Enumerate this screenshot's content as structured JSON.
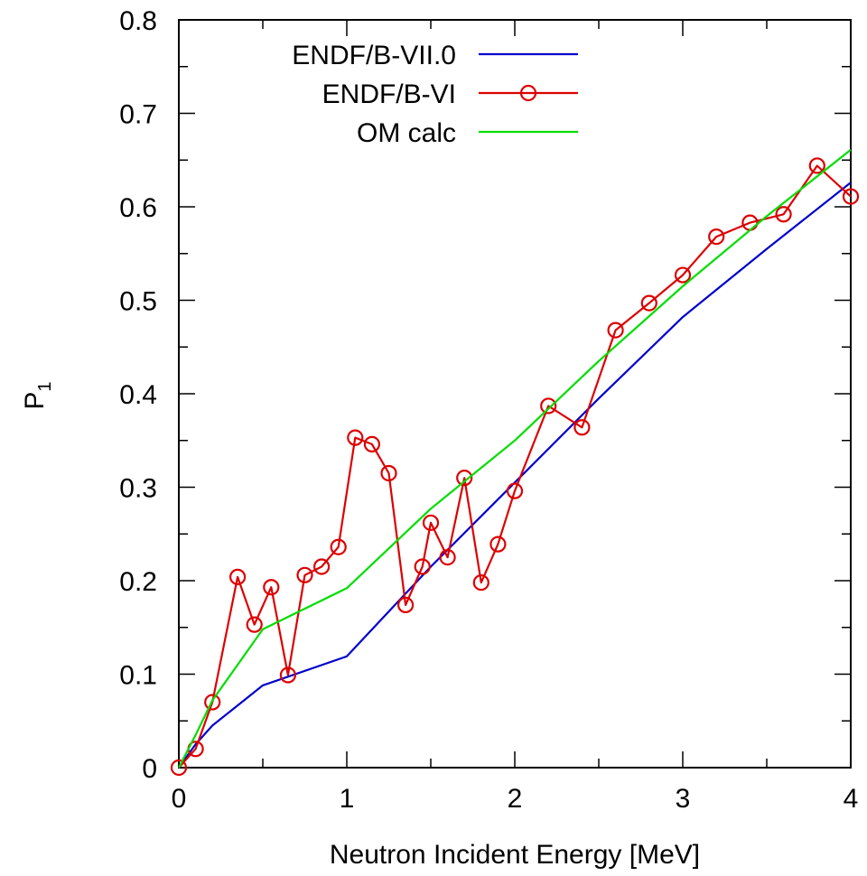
{
  "chart_data": {
    "type": "line",
    "title": "",
    "xlabel": "Neutron Incident Energy [MeV]",
    "ylabel": "P",
    "ylabel_subscript": "1",
    "xlim": [
      0,
      4
    ],
    "ylim": [
      0,
      0.8
    ],
    "x_ticks": [
      0,
      1,
      2,
      3,
      4
    ],
    "x_tick_labels": [
      "0",
      "1",
      "2",
      "3",
      "4"
    ],
    "y_ticks": [
      0,
      0.1,
      0.2,
      0.3,
      0.4,
      0.5,
      0.6,
      0.7,
      0.8
    ],
    "y_tick_labels": [
      "0",
      "0.1",
      "0.2",
      "0.3",
      "0.4",
      "0.5",
      "0.6",
      "0.7",
      "0.8"
    ],
    "grid": false,
    "legend_position": "top-left",
    "series": [
      {
        "name": "ENDF/B-VII.0",
        "color": "#0000cc",
        "marker": "none",
        "x": [
          0,
          0.1,
          0.2,
          0.5,
          1.0,
          1.5,
          2.0,
          2.5,
          3.0,
          3.5,
          4.0
        ],
        "y": [
          0,
          0.025,
          0.045,
          0.088,
          0.119,
          0.215,
          0.305,
          0.395,
          0.482,
          0.555,
          0.626
        ]
      },
      {
        "name": "ENDF/B-VI",
        "color": "#dd0000",
        "marker": "circle",
        "x": [
          0,
          0.1,
          0.2,
          0.35,
          0.45,
          0.55,
          0.65,
          0.75,
          0.85,
          0.95,
          1.05,
          1.15,
          1.25,
          1.35,
          1.45,
          1.5,
          1.6,
          1.7,
          1.8,
          1.9,
          2.0,
          2.2,
          2.4,
          2.6,
          2.8,
          3.0,
          3.2,
          3.4,
          3.6,
          3.8,
          4.0
        ],
        "y": [
          0,
          0.02,
          0.07,
          0.204,
          0.153,
          0.193,
          0.099,
          0.206,
          0.215,
          0.236,
          0.353,
          0.346,
          0.315,
          0.174,
          0.215,
          0.262,
          0.225,
          0.31,
          0.198,
          0.239,
          0.296,
          0.387,
          0.364,
          0.468,
          0.497,
          0.527,
          0.568,
          0.583,
          0.592,
          0.644,
          0.611
        ]
      },
      {
        "name": "OM calc",
        "color": "#00dd00",
        "marker": "none",
        "x": [
          0,
          0.1,
          0.2,
          0.5,
          1.0,
          1.5,
          2.0,
          2.5,
          3.0,
          3.5,
          4.0
        ],
        "y": [
          0,
          0.035,
          0.072,
          0.148,
          0.192,
          0.277,
          0.35,
          0.435,
          0.515,
          0.59,
          0.661
        ]
      }
    ]
  }
}
